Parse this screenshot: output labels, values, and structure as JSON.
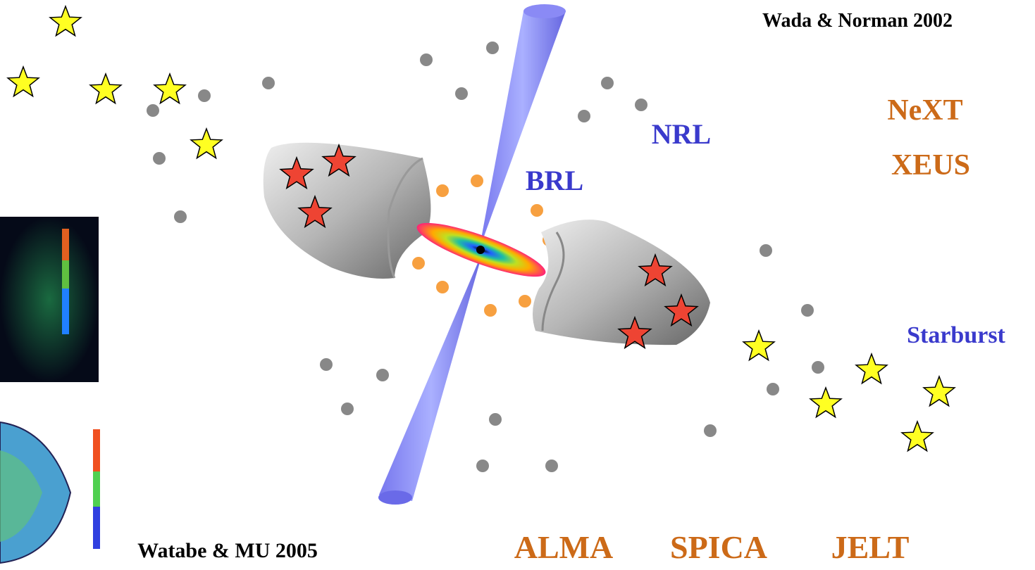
{
  "citations": {
    "top": "Wada & Norman 2002",
    "bottom": "Watabe & MU 2005"
  },
  "labels": {
    "next": "NeXT",
    "xeus": "XEUS",
    "nrl": "NRL",
    "brl": "BRL",
    "starburst": "Starburst"
  },
  "instruments": [
    "ALMA",
    "SPICA",
    "JELT"
  ]
}
